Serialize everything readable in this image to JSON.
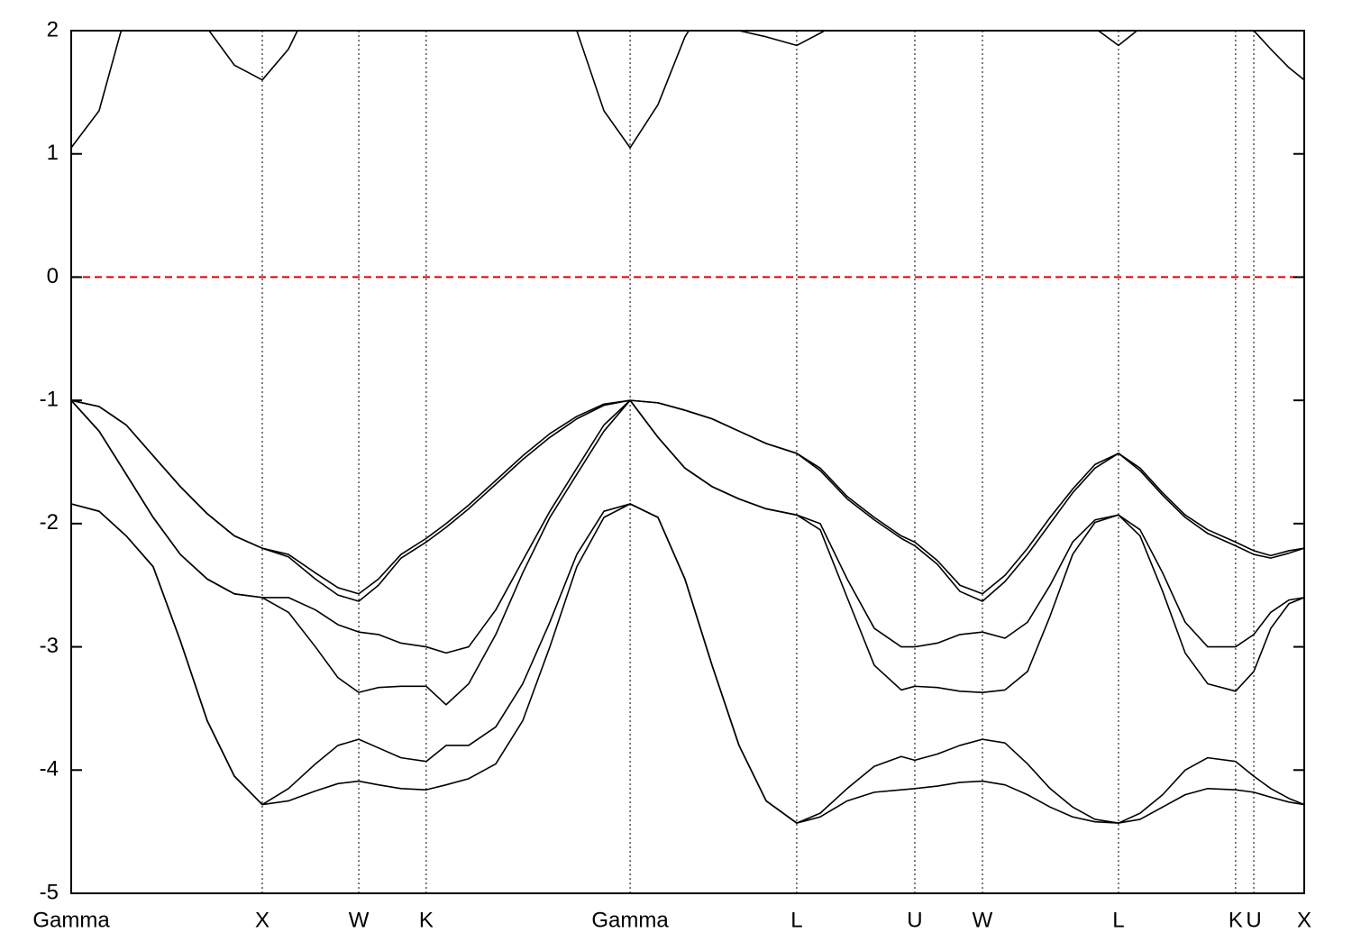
{
  "chart_data": {
    "type": "line",
    "x": [
      0,
      0.146,
      0.288,
      0.429,
      0.571,
      0.712,
      0.854,
      1.0,
      1.137,
      1.278,
      1.396,
      1.505,
      1.608,
      1.726,
      1.858,
      1.962,
      2.08,
      2.222,
      2.363,
      2.505,
      2.646,
      2.788,
      2.925,
      3.071,
      3.212,
      3.354,
      3.495,
      3.637,
      3.797,
      3.92,
      4.061,
      4.203,
      4.344,
      4.415,
      4.533,
      4.651,
      4.769,
      4.887,
      5.005,
      5.123,
      5.241,
      5.358,
      5.481,
      5.594,
      5.712,
      5.83,
      5.948,
      6.094,
      6.189,
      6.278,
      6.373,
      6.453
    ],
    "series": [
      {
        "color": "#000000",
        "values": [
          -1.0,
          -1.05,
          -1.2,
          -1.45,
          -1.7,
          -1.92,
          -2.1,
          -2.2,
          -2.25,
          -2.4,
          -2.52,
          -2.57,
          -2.45,
          -2.25,
          -2.12,
          -2.0,
          -1.85,
          -1.65,
          -1.45,
          -1.27,
          -1.13,
          -1.03,
          -1.0,
          -1.02,
          -1.08,
          -1.15,
          -1.25,
          -1.35,
          -1.43,
          -1.55,
          -1.78,
          -1.95,
          -2.1,
          -2.15,
          -2.3,
          -2.5,
          -2.57,
          -2.42,
          -2.2,
          -1.95,
          -1.72,
          -1.52,
          -1.43,
          -1.55,
          -1.75,
          -1.93,
          -2.05,
          -2.15,
          -2.22,
          -2.26,
          -2.22,
          -2.2
        ]
      },
      {
        "color": "#000000",
        "values": [
          -1.0,
          -1.05,
          -1.2,
          -1.45,
          -1.7,
          -1.92,
          -2.1,
          -2.2,
          -2.27,
          -2.45,
          -2.58,
          -2.63,
          -2.5,
          -2.28,
          -2.15,
          -2.03,
          -1.88,
          -1.68,
          -1.48,
          -1.3,
          -1.15,
          -1.04,
          -1.0,
          -1.02,
          -1.08,
          -1.15,
          -1.25,
          -1.35,
          -1.43,
          -1.57,
          -1.8,
          -1.97,
          -2.12,
          -2.18,
          -2.33,
          -2.55,
          -2.63,
          -2.47,
          -2.25,
          -2.0,
          -1.75,
          -1.55,
          -1.43,
          -1.57,
          -1.77,
          -1.95,
          -2.08,
          -2.18,
          -2.25,
          -2.28,
          -2.24,
          -2.2
        ]
      },
      {
        "color": "#000000",
        "values": [
          -1.0,
          -1.25,
          -1.6,
          -1.95,
          -2.25,
          -2.45,
          -2.57,
          -2.6,
          -2.6,
          -2.7,
          -2.82,
          -2.88,
          -2.9,
          -2.97,
          -3.0,
          -3.05,
          -3.0,
          -2.7,
          -2.3,
          -1.9,
          -1.55,
          -1.2,
          -1.0,
          -1.3,
          -1.55,
          -1.7,
          -1.8,
          -1.88,
          -1.93,
          -2.0,
          -2.45,
          -2.85,
          -3.0,
          -3.0,
          -2.97,
          -2.9,
          -2.88,
          -2.93,
          -2.8,
          -2.5,
          -2.15,
          -1.97,
          -1.93,
          -2.05,
          -2.4,
          -2.8,
          -3.0,
          -3.0,
          -2.9,
          -2.72,
          -2.62,
          -2.6
        ]
      },
      {
        "color": "#000000",
        "values": [
          -1.0,
          -1.25,
          -1.6,
          -1.95,
          -2.25,
          -2.45,
          -2.57,
          -2.6,
          -2.72,
          -3.0,
          -3.25,
          -3.37,
          -3.33,
          -3.32,
          -3.32,
          -3.47,
          -3.3,
          -2.9,
          -2.4,
          -1.95,
          -1.6,
          -1.25,
          -1.0,
          -1.3,
          -1.55,
          -1.7,
          -1.8,
          -1.88,
          -1.93,
          -2.05,
          -2.6,
          -3.15,
          -3.35,
          -3.32,
          -3.33,
          -3.36,
          -3.37,
          -3.35,
          -3.2,
          -2.75,
          -2.25,
          -1.99,
          -1.93,
          -2.1,
          -2.55,
          -3.05,
          -3.3,
          -3.36,
          -3.2,
          -2.85,
          -2.65,
          -2.6
        ]
      },
      {
        "color": "#000000",
        "values": [
          -1.84,
          -1.9,
          -2.1,
          -2.35,
          -2.95,
          -3.6,
          -4.05,
          -4.28,
          -4.15,
          -3.95,
          -3.8,
          -3.75,
          -3.82,
          -3.9,
          -3.93,
          -3.8,
          -3.8,
          -3.65,
          -3.3,
          -2.8,
          -2.25,
          -1.9,
          -1.84,
          -1.95,
          -2.45,
          -3.15,
          -3.8,
          -4.25,
          -4.43,
          -4.35,
          -4.15,
          -3.97,
          -3.89,
          -3.92,
          -3.87,
          -3.8,
          -3.75,
          -3.78,
          -3.95,
          -4.15,
          -4.3,
          -4.4,
          -4.43,
          -4.35,
          -4.2,
          -4.0,
          -3.9,
          -3.93,
          -4.05,
          -4.15,
          -4.23,
          -4.28
        ]
      },
      {
        "color": "#000000",
        "values": [
          -1.84,
          -1.9,
          -2.1,
          -2.35,
          -2.95,
          -3.6,
          -4.05,
          -4.28,
          -4.25,
          -4.17,
          -4.11,
          -4.09,
          -4.12,
          -4.15,
          -4.16,
          -4.12,
          -4.07,
          -3.95,
          -3.6,
          -3.0,
          -2.35,
          -1.95,
          -1.84,
          -1.95,
          -2.45,
          -3.15,
          -3.8,
          -4.25,
          -4.43,
          -4.38,
          -4.25,
          -4.18,
          -4.16,
          -4.15,
          -4.13,
          -4.1,
          -4.09,
          -4.12,
          -4.2,
          -4.3,
          -4.38,
          -4.42,
          -4.43,
          -4.4,
          -4.3,
          -4.2,
          -4.15,
          -4.16,
          -4.18,
          -4.22,
          -4.26,
          -4.28
        ]
      },
      {
        "color": "#000000",
        "values": [
          1.05,
          1.35,
          2.15,
          null,
          null,
          2.02,
          1.72,
          1.6,
          1.85,
          2.3,
          null,
          null,
          null,
          null,
          null,
          null,
          null,
          null,
          null,
          null,
          2.0,
          1.35,
          1.05,
          1.4,
          1.95,
          2.3,
          2.0,
          1.95,
          1.88,
          1.98,
          2.1,
          null,
          null,
          null,
          null,
          null,
          null,
          null,
          null,
          null,
          null,
          2.02,
          1.88,
          2.02,
          null,
          null,
          null,
          null,
          2.0,
          1.85,
          1.7,
          1.6
        ]
      }
    ],
    "xlim": [
      0,
      6.453
    ],
    "xticks": [
      {
        "value": 0,
        "label": "Gamma"
      },
      {
        "value": 1.0,
        "label": "X"
      },
      {
        "value": 1.505,
        "label": "W"
      },
      {
        "value": 1.858,
        "label": "K"
      },
      {
        "value": 2.925,
        "label": "Gamma"
      },
      {
        "value": 3.797,
        "label": "L"
      },
      {
        "value": 4.415,
        "label": "U"
      },
      {
        "value": 4.769,
        "label": "W"
      },
      {
        "value": 5.481,
        "label": "L"
      },
      {
        "value": 6.094,
        "label": "K"
      },
      {
        "value": 6.189,
        "label": "U"
      },
      {
        "value": 6.453,
        "label": "X"
      }
    ],
    "ylim": [
      -5,
      2
    ],
    "yticks": [
      -5,
      -4,
      -3,
      -2,
      -1,
      0,
      1,
      2
    ],
    "vertical_grid": true,
    "reference_line": {
      "value": 0,
      "color": "#e00000",
      "style": "dashed"
    }
  }
}
